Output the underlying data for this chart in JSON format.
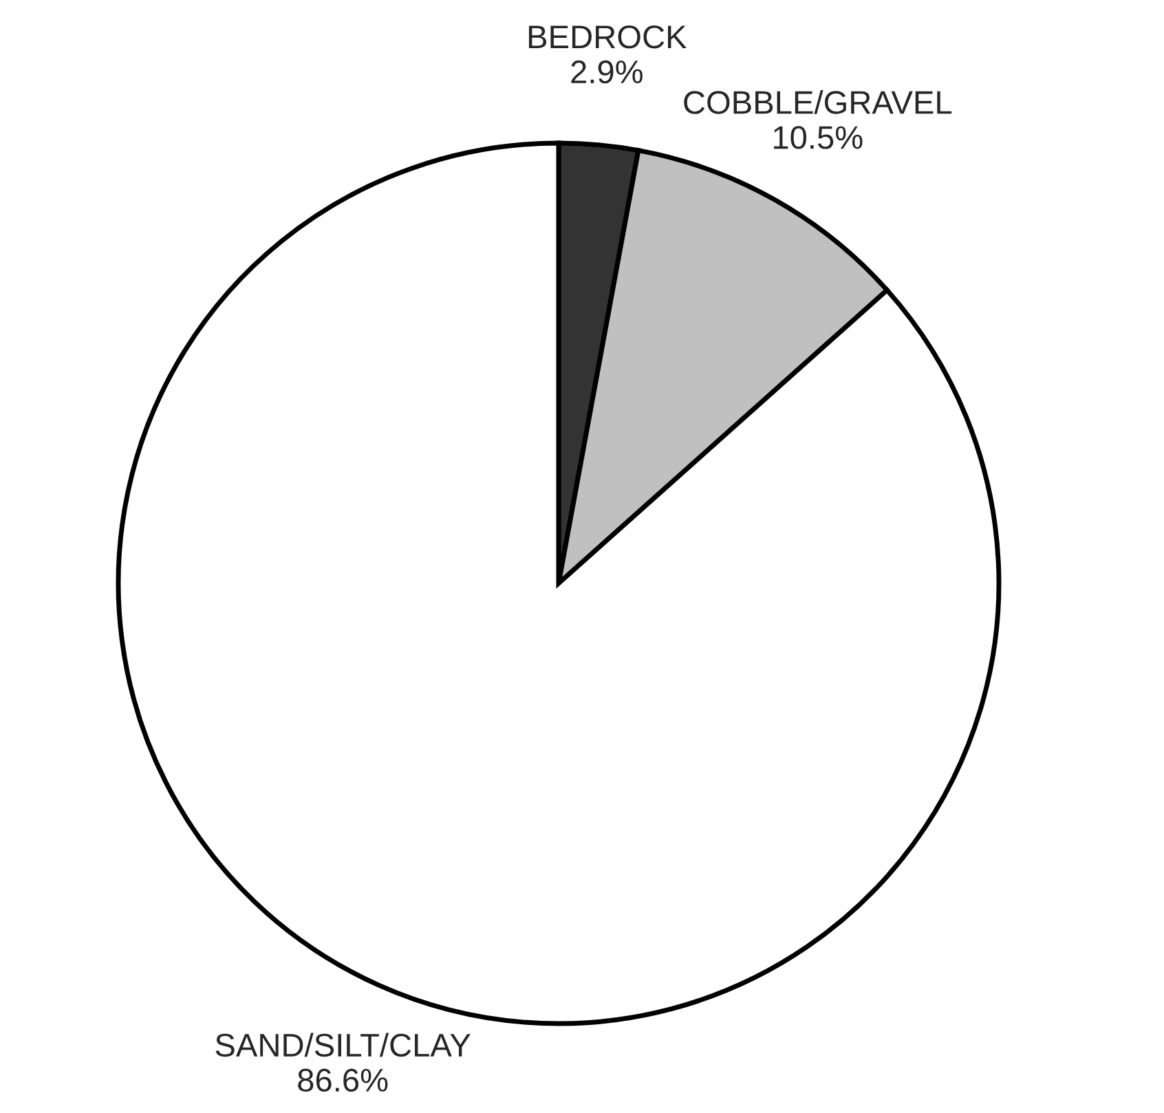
{
  "chart_data": {
    "type": "pie",
    "categories": [
      "BEDROCK",
      "COBBLE/GRAVEL",
      "SAND/SILT/CLAY"
    ],
    "values": [
      2.9,
      10.5,
      86.6
    ],
    "value_labels": [
      "2.9%",
      "10.5%",
      "86.6%"
    ],
    "colors": [
      "#333333",
      "#c0c0c0",
      "#ffffff"
    ],
    "legend": false
  }
}
